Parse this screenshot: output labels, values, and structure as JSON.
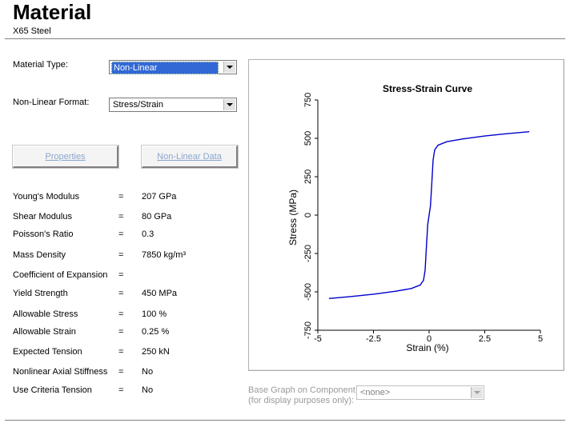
{
  "header": {
    "title": "Material",
    "subtitle": "X65 Steel"
  },
  "form": {
    "material_type_label": "Material Type:",
    "material_type_value": "Non-Linear",
    "nonlinear_format_label": "Non-Linear Format:",
    "nonlinear_format_value": "Stress/Strain",
    "properties_button": "Properties",
    "nonlinear_data_button": "Non-Linear Data"
  },
  "properties": [
    {
      "name": "Young's Modulus",
      "eq": "=",
      "value": "207 GPa"
    },
    {
      "name": "Shear Modulus",
      "eq": "=",
      "value": "80 GPa"
    },
    {
      "name": "Poisson's Ratio",
      "eq": "=",
      "value": "0.3"
    },
    {
      "name": "Mass Density",
      "eq": "=",
      "value": "7850 kg/m³"
    },
    {
      "name": "Coefficient of Expansion",
      "eq": "=",
      "value": ""
    },
    {
      "name": "Yield Strength",
      "eq": "=",
      "value": "450 MPa"
    },
    {
      "name": "Allowable Stress",
      "eq": "=",
      "value": "100 %"
    },
    {
      "name": "Allowable Strain",
      "eq": "=",
      "value": "0.25 %"
    },
    {
      "name": "Expected Tension",
      "eq": "=",
      "value": "250 kN"
    },
    {
      "name": "Nonlinear Axial Stiffness",
      "eq": "=",
      "value": "No"
    },
    {
      "name": "Use Criteria Tension",
      "eq": "=",
      "value": "No"
    }
  ],
  "base_graph": {
    "label_line1": "Base Graph on Component",
    "label_line2": "(for display purposes only):",
    "value": "<none>"
  },
  "chart_data": {
    "type": "line",
    "title": "Stress-Strain Curve",
    "xlabel": "Strain (%)",
    "ylabel": "Stress (MPa)",
    "xlim": [
      -5,
      5
    ],
    "ylim": [
      -750,
      750
    ],
    "x_ticks": [
      "-5",
      "-2.5",
      "0",
      "2.5",
      "5"
    ],
    "y_ticks": [
      "-750",
      "-500",
      "-250",
      "0",
      "250",
      "500",
      "750"
    ],
    "x_tick_values": [
      -5,
      -2.5,
      0,
      2.5,
      5
    ],
    "y_tick_values": [
      -750,
      -500,
      -250,
      0,
      250,
      500,
      750
    ],
    "line_color": "#0000cc",
    "series": [
      {
        "x": [
          -4.5,
          -3.5,
          -2.5,
          -1.5,
          -0.8,
          -0.4,
          -0.25,
          -0.18,
          -0.12,
          -0.06,
          0,
          0.06,
          0.12,
          0.18,
          0.25,
          0.4,
          0.8,
          1.5,
          2.5,
          3.5,
          4.5
        ],
        "y": [
          -543,
          -530,
          -515,
          -496,
          -478,
          -455,
          -425,
          -360,
          -200,
          -60,
          0,
          60,
          200,
          360,
          425,
          455,
          478,
          496,
          515,
          530,
          543
        ]
      }
    ]
  }
}
